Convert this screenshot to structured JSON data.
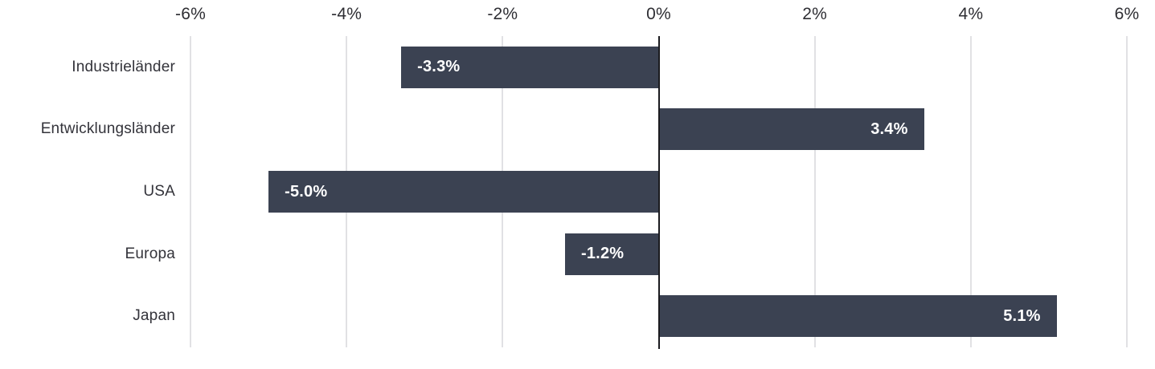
{
  "chart_data": {
    "type": "bar",
    "orientation": "horizontal",
    "title": "",
    "xlabel": "",
    "ylabel": "",
    "categories": [
      "Industrieländer",
      "Entwicklungsländer",
      "USA",
      "Europa",
      "Japan"
    ],
    "values": [
      -3.3,
      3.4,
      -5.0,
      -1.2,
      5.1
    ],
    "value_labels": [
      "-3.3%",
      "3.4%",
      "-5.0%",
      "-1.2%",
      "5.1%"
    ],
    "x_axis": {
      "min": -6,
      "max": 6,
      "position": "top",
      "ticks": [
        -6,
        -4,
        -2,
        0,
        2,
        4,
        6
      ],
      "tick_labels": [
        "-6%",
        "-4%",
        "-2%",
        "0%",
        "2%",
        "4%",
        "6%"
      ]
    },
    "grid": true,
    "legend": "none",
    "value_label_position": "inside-end",
    "colors": {
      "bar": "#3B4252",
      "bar_label_text": "#ffffff",
      "zero_line": "#1b1b1f",
      "gridline": "#e1e1e4",
      "tick_text": "#2e2e33",
      "category_text": "#33333a",
      "background": "#ffffff"
    }
  }
}
